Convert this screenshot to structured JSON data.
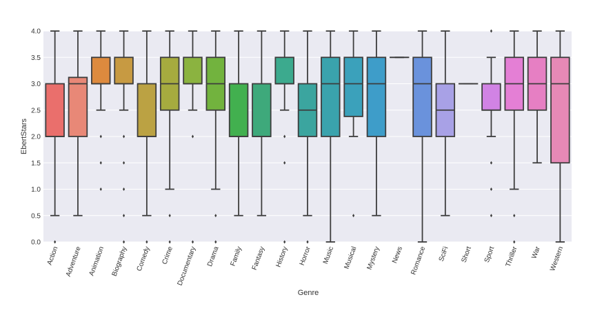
{
  "chart_data": {
    "type": "box",
    "xlabel": "Genre",
    "ylabel": "EbertStars",
    "ylim": [
      0,
      4
    ],
    "yticks": [
      "0.0",
      "0.5",
      "1.0",
      "1.5",
      "2.0",
      "2.5",
      "3.0",
      "3.5",
      "4.0"
    ],
    "grid": true,
    "background": "#eaeaf2",
    "line_color": "#3d3d3d",
    "categories": [
      {
        "name": "Action",
        "color": "#ea6f6c",
        "whisker_low": 0.5,
        "q1": 2.0,
        "median": 2.0,
        "q3": 3.0,
        "whisker_high": 4.0,
        "outliers": [
          0.0
        ]
      },
      {
        "name": "Adventure",
        "color": "#e88877",
        "whisker_low": 0.5,
        "q1": 2.0,
        "median": 3.0,
        "q3": 3.12,
        "whisker_high": 4.0,
        "outliers": []
      },
      {
        "name": "Animation",
        "color": "#dd8a3e",
        "whisker_low": 2.5,
        "q1": 3.0,
        "median": 3.0,
        "q3": 3.5,
        "whisker_high": 4.0,
        "outliers": [
          2.0,
          1.5,
          1.0
        ]
      },
      {
        "name": "Biography",
        "color": "#c79a42",
        "whisker_low": 2.5,
        "q1": 3.0,
        "median": 3.0,
        "q3": 3.5,
        "whisker_high": 4.0,
        "outliers": [
          2.0,
          1.5,
          1.0,
          0.5,
          0.0
        ]
      },
      {
        "name": "Comedy",
        "color": "#bba243",
        "whisker_low": 0.5,
        "q1": 2.0,
        "median": 2.0,
        "q3": 3.0,
        "whisker_high": 4.0,
        "outliers": [
          0.0
        ]
      },
      {
        "name": "Crime",
        "color": "#a6ab3f",
        "whisker_low": 1.0,
        "q1": 2.5,
        "median": 3.0,
        "q3": 3.5,
        "whisker_high": 4.0,
        "outliers": [
          0.5,
          0.0
        ]
      },
      {
        "name": "Documentary",
        "color": "#8bb340",
        "whisker_low": 2.5,
        "q1": 3.0,
        "median": 3.0,
        "q3": 3.5,
        "whisker_high": 4.0,
        "outliers": [
          2.0,
          0.0
        ]
      },
      {
        "name": "Drama",
        "color": "#72b33e",
        "whisker_low": 1.0,
        "q1": 2.5,
        "median": 3.0,
        "q3": 3.5,
        "whisker_high": 4.0,
        "outliers": [
          0.5,
          0.0
        ]
      },
      {
        "name": "Family",
        "color": "#42b04f",
        "whisker_low": 0.5,
        "q1": 2.0,
        "median": 2.0,
        "q3": 3.0,
        "whisker_high": 4.0,
        "outliers": []
      },
      {
        "name": "Fantasy",
        "color": "#3ea97b",
        "whisker_low": 0.5,
        "q1": 2.0,
        "median": 2.0,
        "q3": 3.0,
        "whisker_high": 4.0,
        "outliers": []
      },
      {
        "name": "History",
        "color": "#3caa8e",
        "whisker_low": 2.5,
        "q1": 3.0,
        "median": 3.0,
        "q3": 3.5,
        "whisker_high": 4.0,
        "outliers": [
          2.0,
          1.5,
          0.0
        ]
      },
      {
        "name": "Horror",
        "color": "#3ba59f",
        "whisker_low": 0.5,
        "q1": 2.0,
        "median": 2.5,
        "q3": 3.0,
        "whisker_high": 4.0,
        "outliers": [
          0.0
        ]
      },
      {
        "name": "Music",
        "color": "#3aa3ad",
        "whisker_low": 0.0,
        "q1": 2.0,
        "median": 3.0,
        "q3": 3.5,
        "whisker_high": 4.0,
        "outliers": []
      },
      {
        "name": "Musical",
        "color": "#3ba1bb",
        "whisker_low": 2.0,
        "q1": 2.38,
        "median": 3.0,
        "q3": 3.5,
        "whisker_high": 4.0,
        "outliers": [
          0.5
        ]
      },
      {
        "name": "Mystery",
        "color": "#3e9dc9",
        "whisker_low": 0.5,
        "q1": 2.0,
        "median": 3.0,
        "q3": 3.5,
        "whisker_high": 4.0,
        "outliers": []
      },
      {
        "name": "News",
        "color": "#4f95d4",
        "whisker_low": 3.5,
        "q1": 3.5,
        "median": 3.5,
        "q3": 3.5,
        "whisker_high": 3.5,
        "outliers": []
      },
      {
        "name": "Romance",
        "color": "#6a92dc",
        "whisker_low": 0.0,
        "q1": 2.0,
        "median": 3.0,
        "q3": 3.5,
        "whisker_high": 4.0,
        "outliers": []
      },
      {
        "name": "SciFi",
        "color": "#a8a1e6",
        "whisker_low": 0.5,
        "q1": 2.0,
        "median": 2.5,
        "q3": 3.0,
        "whisker_high": 4.0,
        "outliers": []
      },
      {
        "name": "Short",
        "color": "#b79ae6",
        "whisker_low": 3.0,
        "q1": 3.0,
        "median": 3.0,
        "q3": 3.0,
        "whisker_high": 3.0,
        "outliers": []
      },
      {
        "name": "Sport",
        "color": "#d183e4",
        "whisker_low": 2.0,
        "q1": 2.5,
        "median": 2.5,
        "q3": 3.0,
        "whisker_high": 3.5,
        "outliers": [
          4.0,
          1.5,
          1.0,
          0.5
        ]
      },
      {
        "name": "Thriller",
        "color": "#e47fd5",
        "whisker_low": 1.0,
        "q1": 2.5,
        "median": 3.0,
        "q3": 3.5,
        "whisker_high": 4.0,
        "outliers": [
          0.5,
          0.0
        ]
      },
      {
        "name": "War",
        "color": "#e67fc3",
        "whisker_low": 1.5,
        "q1": 2.5,
        "median": 3.0,
        "q3": 3.5,
        "whisker_high": 4.0,
        "outliers": []
      },
      {
        "name": "Western",
        "color": "#e689b6",
        "whisker_low": 0.0,
        "q1": 1.5,
        "median": 3.0,
        "q3": 3.5,
        "whisker_high": 4.0,
        "outliers": []
      }
    ]
  }
}
